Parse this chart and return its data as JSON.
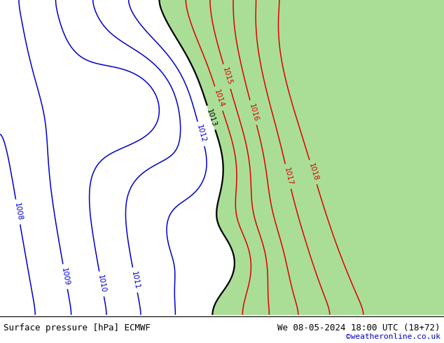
{
  "title_left": "Surface pressure [hPa] ECMWF",
  "title_right": "We 08-05-2024 18:00 UTC (18+72)",
  "credit": "©weatheronline.co.uk",
  "bg_color": "#c8c8c8",
  "land_green_color": "#aade96",
  "contour_red_color": "#dd0000",
  "contour_black_color": "#000000",
  "contour_blue_color": "#0000cc",
  "label_fontsize": 7.5,
  "title_fontsize": 9,
  "credit_fontsize": 8,
  "figsize": [
    6.34,
    4.9
  ],
  "dpi": 100
}
